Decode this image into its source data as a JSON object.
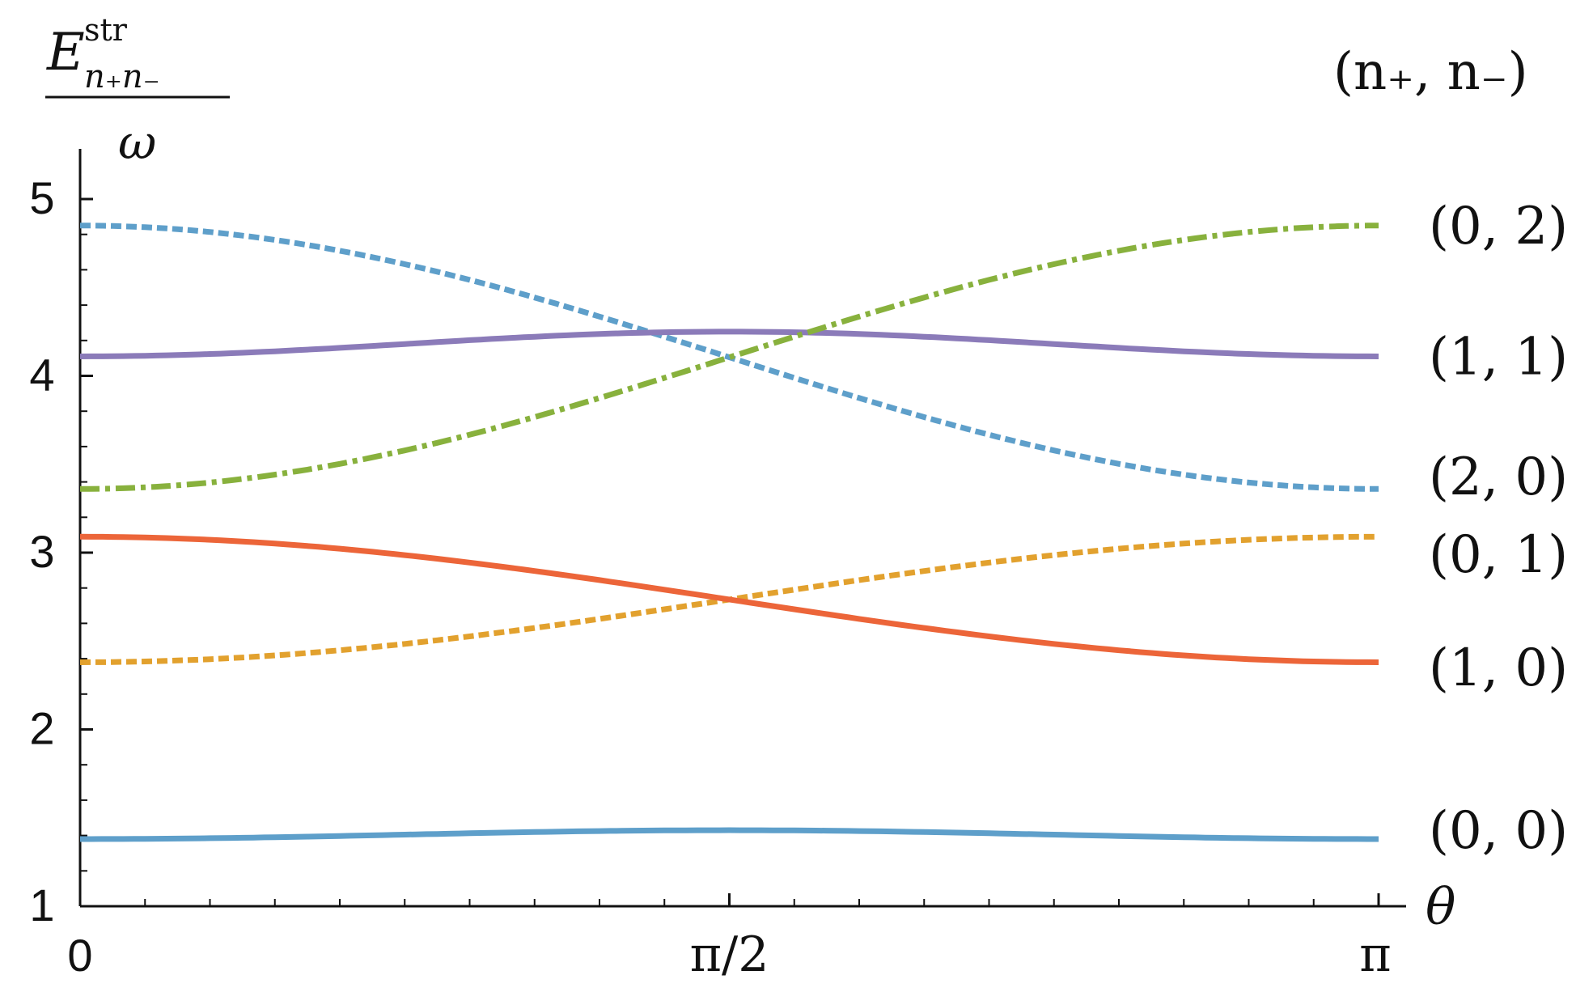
{
  "chart_data": {
    "type": "line",
    "title": "",
    "xlabel": "θ",
    "ylabel_numerator": "E",
    "ylabel_superscript": "str",
    "ylabel_subscript": "n₊n₋",
    "ylabel_denominator": "ω",
    "legend_header": "(n₊, n₋)",
    "xlim": [
      0,
      3.14159
    ],
    "ylim": [
      1,
      5.2
    ],
    "grid": false,
    "x_ticks": [
      {
        "value": 0,
        "label": "0"
      },
      {
        "value": 1.5708,
        "label": "π/2"
      },
      {
        "value": 3.14159,
        "label": "π"
      }
    ],
    "y_ticks": [
      {
        "value": 1,
        "label": "1"
      },
      {
        "value": 2,
        "label": "2"
      },
      {
        "value": 3,
        "label": "3"
      },
      {
        "value": 4,
        "label": "4"
      },
      {
        "value": 5,
        "label": "5"
      }
    ],
    "series": [
      {
        "name": "(0,2)",
        "color": "#5e9fca",
        "dash": "dotted",
        "y_start": 4.85,
        "y_end": 3.36,
        "shape": "cos"
      },
      {
        "name": "(1,1)",
        "color": "#8b7bb9",
        "dash": "solid",
        "y_start": 4.11,
        "y_end": 4.11,
        "y_mid": 4.25,
        "shape": "bump"
      },
      {
        "name": "(2,0)",
        "color": "#88b13d",
        "dash": "dashdot",
        "y_start": 3.36,
        "y_end": 4.85,
        "shape": "cos"
      },
      {
        "name": "(0,1)",
        "color": "#e2a12e",
        "dash": "dotted",
        "y_start": 2.38,
        "y_end": 3.09,
        "shape": "cos"
      },
      {
        "name": "(1,0)",
        "color": "#ec6539",
        "dash": "solid",
        "y_start": 3.09,
        "y_end": 2.38,
        "shape": "cos"
      },
      {
        "name": "(0,0)",
        "color": "#5e9fca",
        "dash": "solid",
        "y_start": 1.38,
        "y_end": 1.38,
        "y_mid": 1.43,
        "shape": "bump"
      }
    ],
    "series_labels": [
      {
        "text": "(0, 2)",
        "y": 4.85
      },
      {
        "text": "(1, 1)",
        "y": 4.11
      },
      {
        "text": "(2, 0)",
        "y": 3.43
      },
      {
        "text": "(0, 1)",
        "y": 2.99
      },
      {
        "text": "(1, 0)",
        "y": 2.35
      },
      {
        "text": "(0, 0)",
        "y": 1.43
      }
    ]
  }
}
